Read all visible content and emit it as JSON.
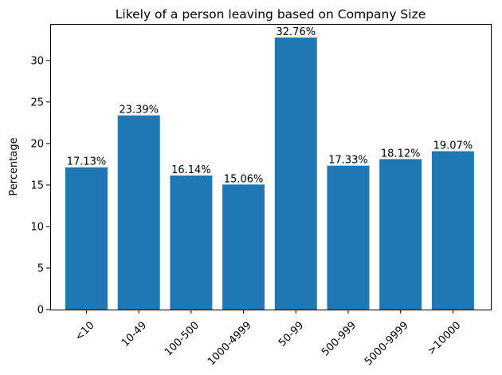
{
  "chart_data": {
    "type": "bar",
    "title": "Likely of a person leaving based on Company Size",
    "xlabel": "",
    "ylabel": "Percentage",
    "categories": [
      "<10",
      "10-49",
      "100-500",
      "1000-4999",
      "50-99",
      "500-999",
      "5000-9999",
      ">10000"
    ],
    "values": [
      17.13,
      23.39,
      16.14,
      15.06,
      32.76,
      17.33,
      18.12,
      19.07
    ],
    "value_labels": [
      "17.13%",
      "23.39%",
      "16.14%",
      "15.06%",
      "32.76%",
      "17.33%",
      "18.12%",
      "19.07%"
    ],
    "yticks": [
      0,
      5,
      10,
      15,
      20,
      25,
      30
    ],
    "ytick_labels": [
      "0",
      "5",
      "10",
      "15",
      "20",
      "25",
      "30"
    ],
    "ylim": [
      0,
      34.4
    ],
    "grid": false,
    "legend": "none",
    "bar_color": "#1f77b4"
  }
}
